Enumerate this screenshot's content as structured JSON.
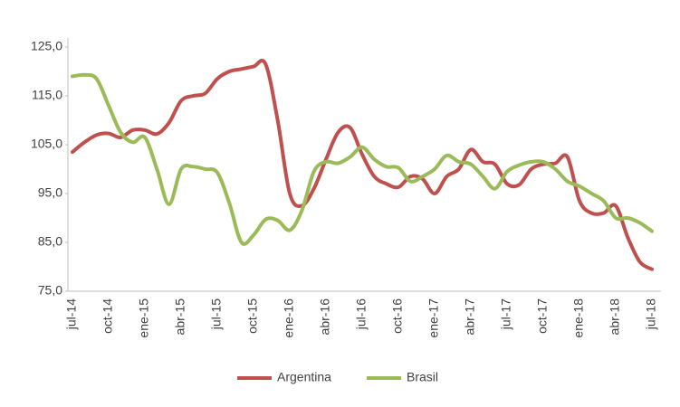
{
  "chart_data": {
    "type": "line",
    "categories": [
      "jul-14",
      null,
      null,
      "oct-14",
      null,
      null,
      "ene-15",
      null,
      null,
      "abr-15",
      null,
      null,
      "jul-15",
      null,
      null,
      "oct-15",
      null,
      null,
      "ene-16",
      null,
      null,
      "abr-16",
      null,
      null,
      "jul-16",
      null,
      null,
      "oct-16",
      null,
      null,
      "ene-17",
      null,
      null,
      "abr-17",
      null,
      null,
      "jul-17",
      null,
      null,
      "oct-17",
      null,
      null,
      "ene-18",
      null,
      null,
      "abr-18",
      null,
      null,
      "jul-18"
    ],
    "series": [
      {
        "name": "Argentina",
        "color": "#c0504d",
        "values": [
          103.5,
          105.5,
          107,
          107.3,
          106.5,
          108,
          108,
          107.2,
          109.5,
          114,
          115,
          115.5,
          118.5,
          120,
          120.5,
          121,
          121.5,
          110,
          95,
          92.5,
          96,
          102,
          107.5,
          108.5,
          103,
          98.5,
          97,
          96.3,
          98.5,
          98,
          95,
          98.5,
          100,
          104,
          101.5,
          101,
          97,
          96.8,
          100,
          101,
          101.2,
          102.5,
          93.5,
          91,
          91,
          92.5,
          86,
          81,
          79.5
        ]
      },
      {
        "name": "Brasil",
        "color": "#9bbb59",
        "values": [
          119,
          119.3,
          118.5,
          113,
          107.5,
          105.5,
          106.5,
          100,
          92.8,
          100,
          100.5,
          100,
          99.3,
          93,
          85,
          86.5,
          89.7,
          89.5,
          87.5,
          91.5,
          99.5,
          101.5,
          101.2,
          102.5,
          104.5,
          102,
          100.5,
          100.3,
          97.5,
          98.5,
          100,
          102.8,
          101.5,
          101,
          98.5,
          96,
          99.5,
          100.8,
          101.5,
          101.5,
          100,
          97.5,
          96.5,
          95,
          93.5,
          90,
          90,
          89,
          87.3
        ]
      }
    ],
    "ylim": [
      75,
      125
    ],
    "yticks": [
      {
        "value": 75,
        "label": "75,0"
      },
      {
        "value": 85,
        "label": "85,0"
      },
      {
        "value": 95,
        "label": "95,0"
      },
      {
        "value": 105,
        "label": "105,0"
      },
      {
        "value": 115,
        "label": "115,0"
      },
      {
        "value": 125,
        "label": "125,0"
      }
    ],
    "legend": "bottom"
  }
}
